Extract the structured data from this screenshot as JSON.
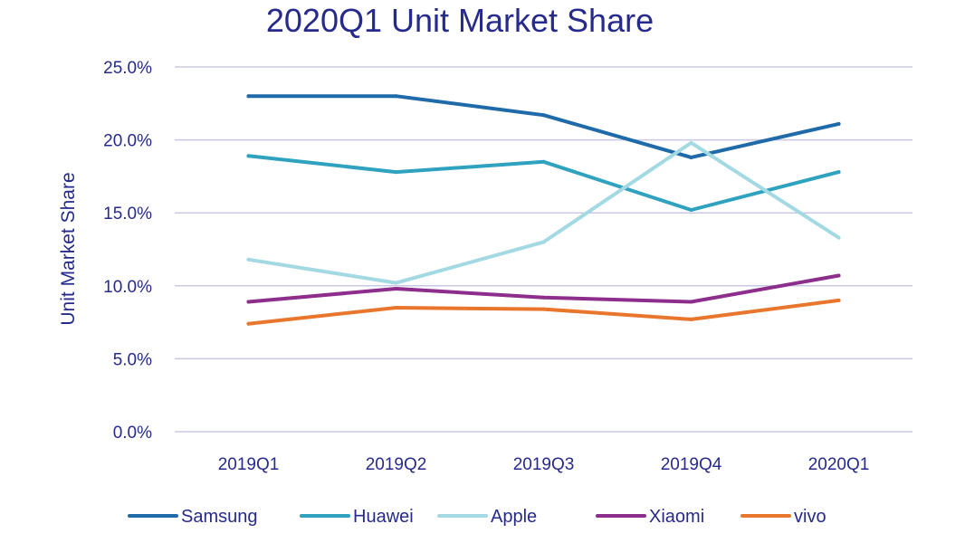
{
  "chart_data": {
    "type": "line",
    "title": "2020Q1 Unit Market Share",
    "xlabel": "",
    "ylabel": "Unit Market  Share",
    "categories": [
      "2019Q1",
      "2019Q2",
      "2019Q3",
      "2019Q4",
      "2020Q1"
    ],
    "y_ticks": [
      "0.0%",
      "5.0%",
      "10.0%",
      "15.0%",
      "20.0%",
      "25.0%"
    ],
    "ylim": [
      0,
      25
    ],
    "grid": true,
    "legend_position": "bottom",
    "series": [
      {
        "name": "Samsung",
        "color": "#1f6aa8",
        "values": [
          23.0,
          23.0,
          21.7,
          18.8,
          21.1
        ]
      },
      {
        "name": "Huawei",
        "color": "#2fa2c0",
        "values": [
          18.9,
          17.8,
          18.5,
          15.2,
          17.8
        ]
      },
      {
        "name": "Apple",
        "color": "#a3d9e2",
        "values": [
          11.8,
          10.2,
          13.0,
          19.8,
          13.3
        ]
      },
      {
        "name": "Xiaomi",
        "color": "#8d2e8c",
        "values": [
          8.9,
          9.8,
          9.2,
          8.9,
          10.7
        ]
      },
      {
        "name": "vivo",
        "color": "#e9762d",
        "values": [
          7.4,
          8.5,
          8.4,
          7.7,
          9.0
        ]
      }
    ]
  }
}
